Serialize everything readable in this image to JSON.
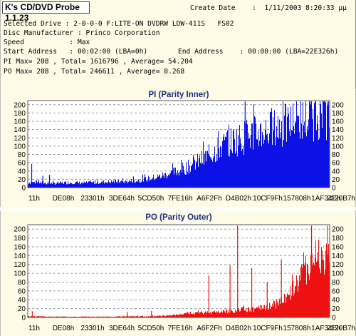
{
  "app": {
    "title": "K's CD/DVD Probe 1.1.23"
  },
  "info": {
    "create_date_label": "Create Date",
    "create_date_value": ":  1/11/2003 8:20:33 μμ",
    "selected_drive": "Selected Drive : 2-0-0-0 F:LITE-ON DVDRW LDW-411S   FS02",
    "disc_manufacturer": "Disc Manufacturer : Princo Corporation",
    "speed": "Speed           : Max",
    "start_address": "Start Address   : 00:02:00 (LBA=0h)",
    "end_address": "End Address    : 00:00:00 (LBA=22E326h)",
    "pi_summary": "PI Max= 208 , Total= 1616796 , Average= 54.204",
    "po_summary": "PO Max= 208 , Total= 246611 , Average= 8.268"
  },
  "chart_data": [
    {
      "type": "area",
      "title": "PI (Parity Inner)",
      "xlabel": "",
      "ylabel": "",
      "x_ticks": [
        "11h",
        "DE08h",
        "23301h",
        "3DE64h",
        "5CD50h",
        "7FE16h",
        "A6F2Fh",
        "D4B02h",
        "10CF9Fh",
        "157808h",
        "1AF34Eh",
        "2120B7h"
      ],
      "y_ticks": [
        0,
        20,
        40,
        60,
        80,
        100,
        120,
        140,
        160,
        180,
        200
      ],
      "ylim": [
        0,
        210
      ],
      "grid": true,
      "color": "#0c12e6",
      "max": 208,
      "envelope": [
        14,
        15,
        12,
        13,
        15,
        13,
        14,
        16,
        17,
        17,
        20,
        24,
        30,
        38,
        48,
        60,
        76,
        95,
        118,
        132,
        142,
        152,
        160,
        168,
        178,
        188,
        196,
        205,
        205
      ],
      "spikes": [
        {
          "x": 0.013,
          "y": 57
        },
        {
          "x": 0.05,
          "y": 29
        },
        {
          "x": 0.072,
          "y": 31
        },
        {
          "x": 0.35,
          "y": 26
        },
        {
          "x": 0.72,
          "y": 208
        },
        {
          "x": 0.63,
          "y": 120
        }
      ]
    },
    {
      "type": "area",
      "title": "PO (Parity Outer)",
      "xlabel": "",
      "ylabel": "",
      "x_ticks": [
        "11h",
        "DE08h",
        "23301h",
        "3DE64h",
        "5CD50h",
        "7FE16h",
        "A6F2Fh",
        "D4B02h",
        "10CF9Fh",
        "157808h",
        "1AF34Eh",
        "2120B7h"
      ],
      "y_ticks": [
        0,
        20,
        40,
        60,
        80,
        100,
        120,
        140,
        160,
        180,
        200
      ],
      "ylim": [
        0,
        210
      ],
      "grid": true,
      "color": "#ee1111",
      "max": 208,
      "envelope": [
        3,
        3,
        2,
        2,
        2,
        2,
        2,
        2,
        2,
        3,
        3,
        3,
        4,
        5,
        7,
        10,
        12,
        14,
        15,
        17,
        20,
        22,
        26,
        35,
        52,
        90,
        140,
        165,
        150
      ],
      "spikes": [
        {
          "x": 0.015,
          "y": 14
        },
        {
          "x": 0.33,
          "y": 12
        },
        {
          "x": 0.41,
          "y": 15
        },
        {
          "x": 0.6,
          "y": 95
        },
        {
          "x": 0.67,
          "y": 118
        },
        {
          "x": 0.695,
          "y": 208
        },
        {
          "x": 0.742,
          "y": 112
        },
        {
          "x": 0.793,
          "y": 80
        },
        {
          "x": 0.84,
          "y": 132
        },
        {
          "x": 0.94,
          "y": 208
        }
      ]
    }
  ]
}
